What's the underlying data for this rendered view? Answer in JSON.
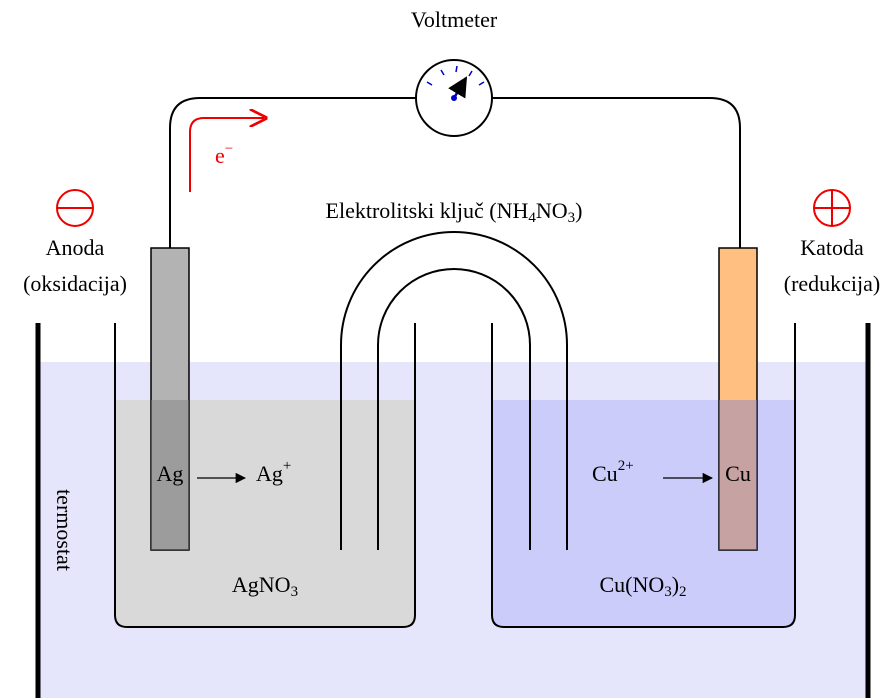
{
  "voltmeter": {
    "label": "Voltmeter"
  },
  "electron": {
    "symbol": "e",
    "charge": "−"
  },
  "salt_bridge": {
    "label": [
      "Elektrolitski ključ (NH",
      "4",
      "NO",
      "3",
      ")"
    ]
  },
  "anode": {
    "label": "Anoda",
    "role": "(oksidacija)",
    "electrode": "Ag",
    "product": [
      "Ag",
      "+"
    ],
    "solution": [
      "AgNO",
      "3"
    ]
  },
  "cathode": {
    "label": "Katoda",
    "role": "(redukcija)",
    "electrode": "Cu",
    "reactant": [
      "Cu",
      "2+"
    ],
    "solution": [
      "Cu(NO",
      "3",
      ")",
      "2"
    ]
  },
  "thermostat": {
    "label": "termostat"
  }
}
